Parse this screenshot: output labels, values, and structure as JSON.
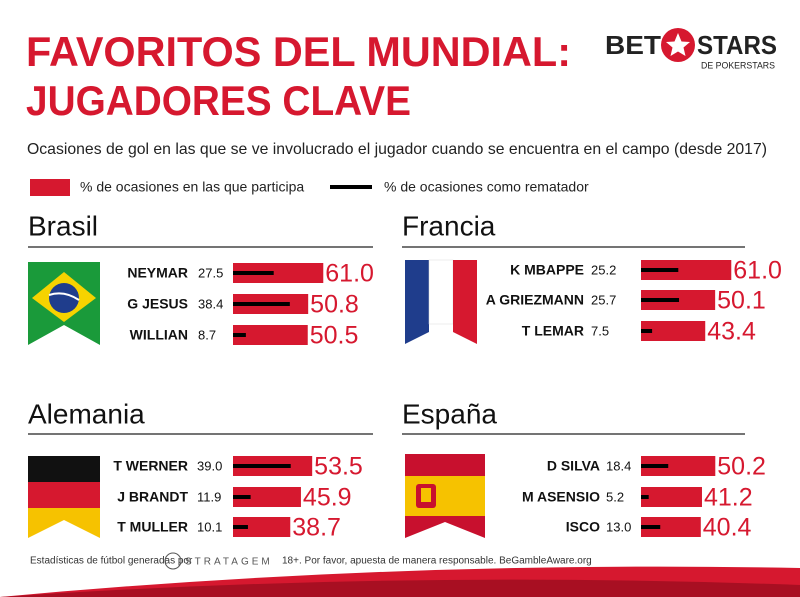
{
  "title_lines": [
    "FAVORITOS DEL MUNDIAL:",
    "JUGADORES CLAVE"
  ],
  "logo": {
    "left": "BET",
    "right": "STARS",
    "sub": "DE POKERSTARS"
  },
  "subtitle": "Ocasiones de gol en las que se ve involucrado el jugador cuando se encuentra en el campo (desde 2017)",
  "legend": [
    {
      "name": "% de ocasiones en las que participa",
      "color": "#d6182f"
    },
    {
      "name": "% de ocasiones como rematador",
      "color": "#000000"
    }
  ],
  "chart_data": [
    {
      "type": "bar",
      "title": "Brasil",
      "categories": [
        "NEYMAR",
        "G JESUS",
        "WILLIAN"
      ],
      "series": [
        {
          "values": [
            61.0,
            50.8,
            50.5
          ],
          "value_labels": [
            "61.0",
            "50.8",
            "50.5"
          ]
        },
        {
          "values": [
            27.5,
            38.4,
            8.7
          ],
          "value_labels": [
            "27.5",
            "38.4",
            "8.7"
          ]
        }
      ]
    },
    {
      "type": "bar",
      "title": "Francia",
      "categories": [
        "K MBAPPE",
        "A GRIEZMANN",
        "T LEMAR"
      ],
      "series": [
        {
          "values": [
            61.0,
            50.1,
            43.4
          ],
          "value_labels": [
            "61.0",
            "50.1",
            "43.4"
          ]
        },
        {
          "values": [
            25.2,
            25.7,
            7.5
          ],
          "value_labels": [
            "25.2",
            "25.7",
            "7.5"
          ]
        }
      ]
    },
    {
      "type": "bar",
      "title": "Alemania",
      "categories": [
        "T WERNER",
        "J BRANDT",
        "T MULLER"
      ],
      "series": [
        {
          "values": [
            53.5,
            45.9,
            38.7
          ],
          "value_labels": [
            "53.5",
            "45.9",
            "38.7"
          ]
        },
        {
          "values": [
            39.0,
            11.9,
            10.1
          ],
          "value_labels": [
            "39.0",
            "11.9",
            "10.1"
          ]
        }
      ]
    },
    {
      "type": "bar",
      "title": "España",
      "categories": [
        "D SILVA",
        "M ASENSIO",
        "ISCO"
      ],
      "series": [
        {
          "values": [
            50.2,
            41.2,
            40.4
          ],
          "value_labels": [
            "50.2",
            "41.2",
            "40.4"
          ]
        },
        {
          "values": [
            18.4,
            5.2,
            13.0
          ],
          "value_labels": [
            "18.4",
            "5.2",
            "13.0"
          ]
        }
      ]
    }
  ],
  "footer": {
    "credit": "Estadísticas de fútbol generadas por",
    "credit_logo": "STRATAGEM",
    "disclaimer": "18+. Por favor, apuesta de manera responsable. BeGambleAware.org"
  }
}
